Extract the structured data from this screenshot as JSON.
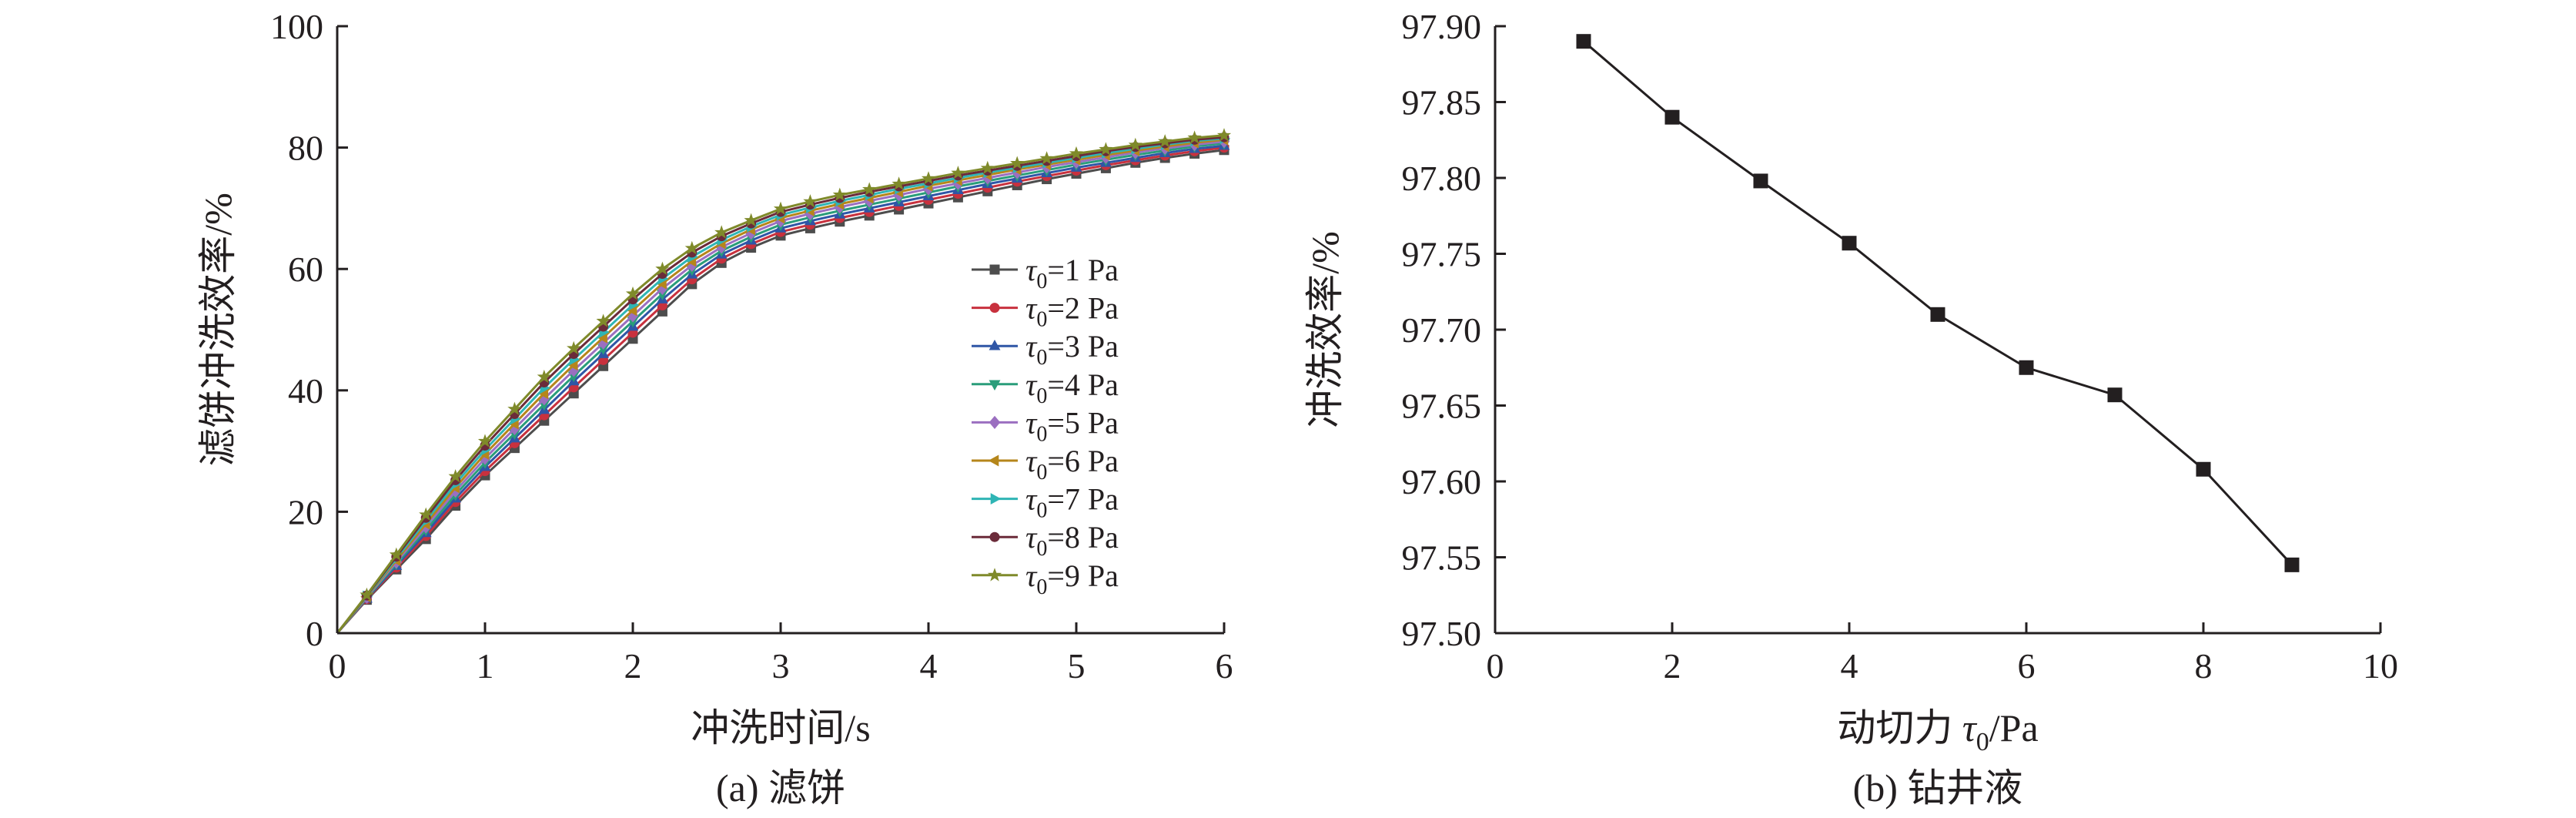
{
  "chart_data": [
    {
      "type": "line",
      "caption": "(a) 滤饼",
      "xlabel": "冲洗时间/s",
      "ylabel": "滤饼冲洗效率/%",
      "xlim": [
        0,
        6
      ],
      "ylim": [
        0,
        100
      ],
      "xticks": [
        "0",
        "1",
        "2",
        "3",
        "4",
        "5",
        "6"
      ],
      "yticks": [
        "0",
        "20",
        "40",
        "60",
        "80",
        "100"
      ],
      "legend_position": "center-right",
      "x": [
        0,
        0.2,
        0.4,
        0.6,
        0.8,
        1.0,
        1.2,
        1.4,
        1.6,
        1.8,
        2.0,
        2.2,
        2.4,
        2.6,
        2.8,
        3.0,
        3.2,
        3.4,
        3.6,
        3.8,
        4.0,
        4.2,
        4.4,
        4.6,
        4.8,
        5.0,
        5.2,
        5.4,
        5.6,
        5.8,
        6.0
      ],
      "series": [
        {
          "name": "τ0=1 Pa",
          "sub_symbol": "τ",
          "sub_index": "0",
          "sub_rest": "=1 Pa",
          "color": "#4d4d4d",
          "marker": "square",
          "values": [
            0,
            5.5,
            10.5,
            15.5,
            21,
            26,
            30.5,
            35,
            39.5,
            44,
            48.5,
            53,
            57.5,
            61,
            63.5,
            65.5,
            66.7,
            67.8,
            68.8,
            69.8,
            70.8,
            71.8,
            72.8,
            73.8,
            74.8,
            75.7,
            76.6,
            77.5,
            78.3,
            79,
            79.6
          ]
        },
        {
          "name": "τ0=2 Pa",
          "sub_symbol": "τ",
          "sub_index": "0",
          "sub_rest": "=2 Pa",
          "color": "#c8313e",
          "marker": "circle",
          "values": [
            0,
            5.6,
            10.8,
            16,
            21.6,
            26.7,
            31.3,
            35.9,
            40.5,
            45,
            49.5,
            54,
            58.3,
            61.7,
            64.1,
            66.1,
            67.3,
            68.4,
            69.4,
            70.4,
            71.4,
            72.4,
            73.4,
            74.4,
            75.3,
            76.2,
            77.1,
            77.9,
            78.7,
            79.4,
            80
          ]
        },
        {
          "name": "τ0=3 Pa",
          "sub_symbol": "τ",
          "sub_index": "0",
          "sub_rest": "=3 Pa",
          "color": "#2f56a6",
          "marker": "triangle",
          "values": [
            0,
            5.7,
            11.1,
            16.5,
            22.2,
            27.4,
            32.1,
            36.8,
            41.5,
            46,
            50.5,
            55,
            59.1,
            62.4,
            64.7,
            66.7,
            67.9,
            69,
            70,
            71,
            72,
            73,
            74,
            74.9,
            75.8,
            76.7,
            77.5,
            78.3,
            79.1,
            79.8,
            80.3
          ]
        },
        {
          "name": "τ0=4 Pa",
          "sub_symbol": "τ",
          "sub_index": "0",
          "sub_rest": "=4 Pa",
          "color": "#2a9d7a",
          "marker": "triangle-down",
          "values": [
            0,
            5.8,
            11.4,
            17,
            22.8,
            28.1,
            32.9,
            37.7,
            42.4,
            46.9,
            51.4,
            55.9,
            59.9,
            63,
            65.3,
            67.3,
            68.5,
            69.6,
            70.6,
            71.6,
            72.6,
            73.6,
            74.5,
            75.4,
            76.3,
            77.2,
            78,
            78.8,
            79.5,
            80.2,
            80.7
          ]
        },
        {
          "name": "τ0=5 Pa",
          "sub_symbol": "τ",
          "sub_index": "0",
          "sub_rest": "=5 Pa",
          "color": "#9b6fc0",
          "marker": "diamond",
          "values": [
            0,
            5.9,
            11.7,
            17.5,
            23.4,
            28.8,
            33.7,
            38.6,
            43.3,
            47.8,
            52.3,
            56.8,
            60.6,
            63.6,
            65.9,
            67.9,
            69.1,
            70.2,
            71.2,
            72.2,
            73.2,
            74.1,
            75,
            75.9,
            76.8,
            77.6,
            78.4,
            79.2,
            79.9,
            80.5,
            81
          ]
        },
        {
          "name": "τ0=6 Pa",
          "sub_symbol": "τ",
          "sub_index": "0",
          "sub_rest": "=6 Pa",
          "color": "#b5861b",
          "marker": "triangle-left",
          "values": [
            0,
            6,
            12,
            18,
            24,
            29.5,
            34.5,
            39.5,
            44.2,
            48.7,
            53.2,
            57.6,
            61.3,
            64.2,
            66.5,
            68.4,
            69.6,
            70.7,
            71.7,
            72.7,
            73.7,
            74.6,
            75.5,
            76.4,
            77.2,
            78,
            78.8,
            79.5,
            80.2,
            80.8,
            81.3
          ]
        },
        {
          "name": "τ0=7 Pa",
          "sub_symbol": "τ",
          "sub_index": "0",
          "sub_rest": "=7 Pa",
          "color": "#2fb5b5",
          "marker": "triangle-right",
          "values": [
            0,
            6.1,
            12.3,
            18.5,
            24.6,
            30.2,
            35.3,
            40.4,
            45.1,
            49.6,
            54.1,
            58.4,
            62,
            64.8,
            67,
            68.9,
            70.1,
            71.2,
            72.2,
            73.2,
            74.1,
            75,
            75.9,
            76.7,
            77.5,
            78.3,
            79.1,
            79.8,
            80.5,
            81.1,
            81.5
          ]
        },
        {
          "name": "τ0=8 Pa",
          "sub_symbol": "τ",
          "sub_index": "0",
          "sub_rest": "=8 Pa",
          "color": "#6b2b3a",
          "marker": "circle",
          "values": [
            0,
            6.2,
            12.6,
            19,
            25.2,
            30.9,
            36.1,
            41.3,
            46,
            50.5,
            55,
            59.2,
            62.7,
            65.4,
            67.5,
            69.4,
            70.6,
            71.7,
            72.7,
            73.6,
            74.5,
            75.4,
            76.2,
            77,
            77.8,
            78.6,
            79.4,
            80.1,
            80.7,
            81.3,
            81.7
          ]
        },
        {
          "name": "τ0=9 Pa",
          "sub_symbol": "τ",
          "sub_index": "0",
          "sub_rest": "=9 Pa",
          "color": "#7f8a2a",
          "marker": "star",
          "values": [
            0,
            6.3,
            12.9,
            19.5,
            25.8,
            31.6,
            36.9,
            42.2,
            46.9,
            51.4,
            55.9,
            60,
            63.4,
            66,
            68,
            69.9,
            71.1,
            72.2,
            73.1,
            74,
            74.9,
            75.8,
            76.6,
            77.4,
            78.2,
            79,
            79.7,
            80.4,
            81,
            81.6,
            82
          ]
        }
      ]
    },
    {
      "type": "line",
      "caption": "(b) 钻井液",
      "xlabel_main": "动切力 ",
      "xlabel_symbol": "τ",
      "xlabel_index": "0",
      "xlabel_rest": "/Pa",
      "ylabel": "冲洗效率/%",
      "xlim": [
        0,
        10
      ],
      "ylim": [
        97.5,
        97.9
      ],
      "xticks": [
        "0",
        "2",
        "4",
        "6",
        "8",
        "10"
      ],
      "yticks": [
        "97.50",
        "97.55",
        "97.60",
        "97.65",
        "97.70",
        "97.75",
        "97.80",
        "97.85",
        "97.90"
      ],
      "series": [
        {
          "color": "#231f20",
          "marker": "square",
          "x": [
            1,
            2,
            3,
            4,
            5,
            6,
            7,
            8,
            9
          ],
          "values": [
            97.89,
            97.84,
            97.798,
            97.757,
            97.71,
            97.675,
            97.657,
            97.608,
            97.545
          ]
        }
      ]
    }
  ]
}
